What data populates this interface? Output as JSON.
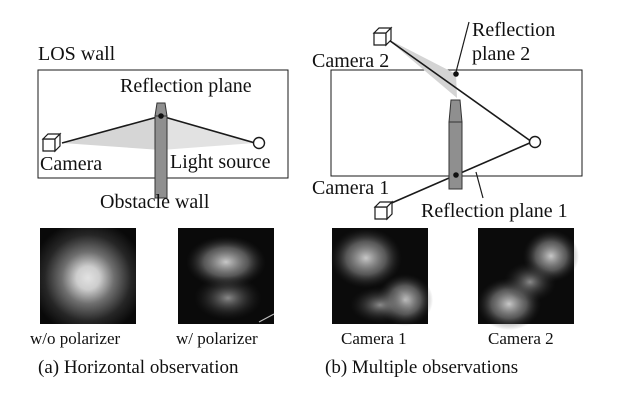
{
  "panel_a": {
    "los_wall_label": "LOS wall",
    "reflection_plane_label": "Reflection plane",
    "camera_label": "Camera",
    "light_source_label": "Light source",
    "obstacle_wall_label": "Obstacle wall",
    "photo_wo_label": "w/o polarizer",
    "photo_w_label": "w/ polarizer",
    "caption": "(a) Horizontal observation"
  },
  "panel_b": {
    "camera2_label": "Camera 2",
    "reflection_plane2_line1": "Reflection",
    "reflection_plane2_line2": "plane 2",
    "camera1_label": "Camera 1",
    "reflection_plane1_label": "Reflection plane 1",
    "photo_cam1_label": "Camera 1",
    "photo_cam2_label": "Camera 2",
    "caption": "(b) Multiple observations"
  },
  "colors": {
    "line": "#1a1a1a",
    "wall_fill": "#8f8f8f",
    "wall_stroke": "#333333",
    "reflection_cone": "#d6d6d6",
    "photo_background": "#0a0a0a"
  },
  "icons": [
    "camera-icon",
    "light-source-icon"
  ]
}
